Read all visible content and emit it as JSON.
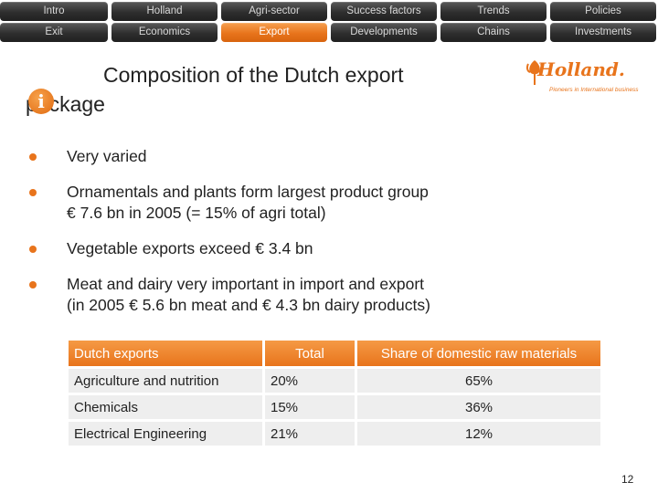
{
  "nav": {
    "row1": [
      "Intro",
      "Holland",
      "Agri-sector",
      "Success factors",
      "Trends",
      "Policies"
    ],
    "row2": [
      "Exit",
      "Economics",
      "Export",
      "Developments",
      "Chains",
      "Investments"
    ],
    "active": "Export"
  },
  "title": "Composition of the Dutch export package",
  "info_icon": "i",
  "logo": {
    "word": "Holland.",
    "tagline": "Pioneers in International business"
  },
  "bullets": [
    "Very varied",
    "Ornamentals and plants form largest product group\n€ 7.6 bn in 2005 (= 15% of agri total)",
    "Vegetable exports exceed € 3.4 bn",
    "Meat and dairy very important in import and export\n(in 2005 € 5.6 bn meat and € 4.3 bn dairy products)"
  ],
  "table": {
    "headers": [
      "Dutch exports",
      "Total",
      "Share of domestic raw materials"
    ],
    "rows": [
      [
        "Agriculture and nutrition",
        "20%",
        "65%"
      ],
      [
        "Chemicals",
        "15%",
        "36%"
      ],
      [
        "Electrical Engineering",
        "21%",
        "12%"
      ]
    ]
  },
  "page_number": "12",
  "colors": {
    "accent": "#e8741c",
    "nav_dark": "#2e2e2e"
  }
}
